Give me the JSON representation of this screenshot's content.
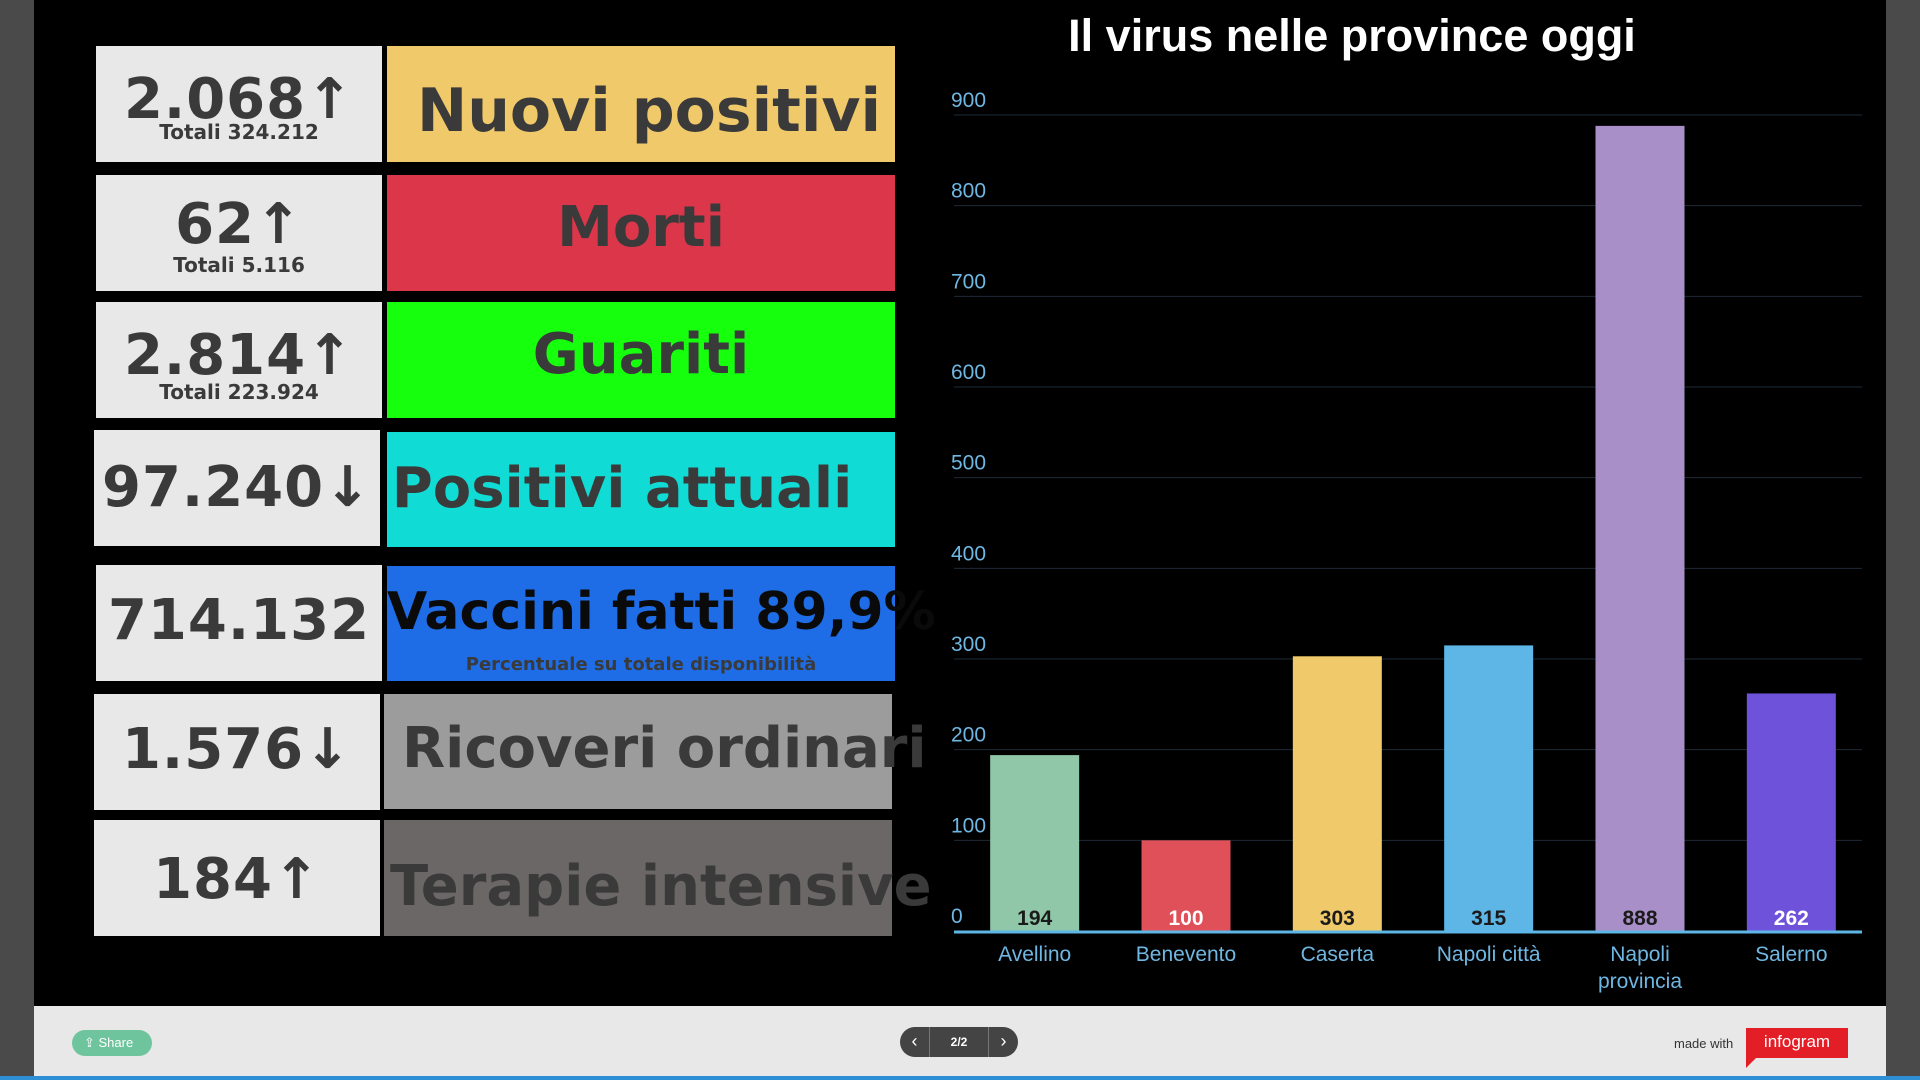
{
  "stats": [
    {
      "value": "2.068↑",
      "total": "Totali 324.212",
      "label": "Nuovi positivi",
      "color": "#f0c96a"
    },
    {
      "value": "62↑",
      "total": "Totali 5.116",
      "label": "Morti",
      "color": "#dc364b"
    },
    {
      "value": "2.814↑",
      "total": "Totali 223.924",
      "label": "Guariti",
      "color": "#16ff0d"
    },
    {
      "value": "97.240↓",
      "total": "",
      "label": "Positivi attuali",
      "color": "#10dcd5"
    },
    {
      "value": "714.132",
      "total": "",
      "label": "Vaccini fatti 89,9%",
      "sublabel": "Percentuale su totale disponibilità",
      "color": "#1e6de6"
    },
    {
      "value": "1.576↓",
      "total": "",
      "label": "Ricoveri ordinari",
      "color": "#9c9c9c"
    },
    {
      "value": "184↑",
      "total": "",
      "label": "Terapie intensive",
      "color": "#6c6767"
    }
  ],
  "chart_data": {
    "type": "bar",
    "title": "Il virus nelle province oggi",
    "categories": [
      "Avellino",
      "Benevento",
      "Caserta",
      "Napoli città",
      "Napoli provincia",
      "Salerno"
    ],
    "values": [
      194,
      100,
      303,
      315,
      888,
      262
    ],
    "colors": [
      "#8fc7a8",
      "#e05058",
      "#efc96a",
      "#5db6e5",
      "#a98fc8",
      "#6f52da"
    ],
    "ylim": [
      0,
      900
    ],
    "yticks": [
      0,
      100,
      200,
      300,
      400,
      500,
      600,
      700,
      800,
      900
    ],
    "grid": true,
    "xlabel": "",
    "ylabel": ""
  },
  "footer": {
    "share_label": "Share",
    "pager_count": "2/2",
    "prev_icon": "‹",
    "next_icon": "›",
    "made_with": "made with",
    "brand": "infogram"
  }
}
